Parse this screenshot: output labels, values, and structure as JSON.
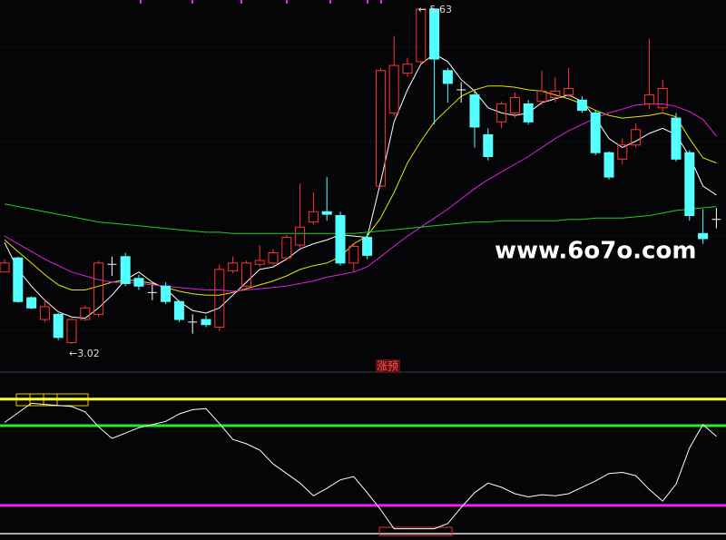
{
  "chart_data": [
    {
      "type": "candlestick",
      "up_color": "#ff3232",
      "down_color": "#54ffff",
      "flat_color": "#ffffff",
      "open": [
        3.58,
        3.69,
        3.38,
        3.21,
        3.25,
        3.03,
        3.21,
        3.25,
        3.64,
        3.7,
        3.53,
        3.42,
        3.47,
        3.35,
        3.19,
        3.21,
        3.15,
        3.59,
        3.47,
        3.64,
        3.65,
        3.69,
        3.79,
        3.97,
        4.05,
        4.02,
        3.65,
        3.85,
        4.25,
        4.82,
        5.13,
        5.22,
        5.63,
        5.15,
        5.0,
        4.96,
        4.65,
        4.75,
        4.82,
        4.89,
        4.91,
        4.94,
        4.96,
        4.92,
        4.82,
        4.51,
        4.46,
        4.57,
        4.89,
        4.86,
        4.78,
        4.51,
        3.88,
        3.99
      ],
      "high": [
        3.68,
        3.7,
        3.39,
        3.37,
        3.26,
        3.22,
        3.32,
        3.67,
        3.7,
        3.73,
        3.56,
        3.48,
        3.5,
        3.36,
        3.25,
        3.24,
        3.64,
        3.7,
        3.67,
        3.79,
        3.76,
        3.87,
        4.27,
        4.2,
        4.32,
        4.05,
        3.8,
        3.88,
        5.17,
        5.42,
        5.25,
        5.63,
        5.63,
        5.17,
        5.06,
        5.0,
        4.7,
        4.91,
        4.98,
        4.92,
        5.15,
        5.1,
        5.17,
        4.95,
        4.84,
        4.52,
        4.62,
        4.74,
        5.4,
        5.08,
        4.82,
        4.53,
        4.07,
        4.08
      ],
      "low": [
        3.58,
        3.34,
        3.29,
        3.19,
        3.05,
        3.02,
        3.2,
        3.23,
        3.55,
        3.47,
        3.44,
        3.36,
        3.33,
        3.19,
        3.1,
        3.15,
        3.12,
        3.57,
        3.46,
        3.62,
        3.63,
        3.67,
        3.77,
        3.95,
        3.98,
        3.63,
        3.58,
        3.68,
        4.24,
        4.8,
        5.1,
        5.2,
        4.73,
        4.9,
        4.9,
        4.55,
        4.45,
        4.7,
        4.78,
        4.73,
        4.88,
        4.9,
        4.94,
        4.82,
        4.49,
        4.3,
        4.42,
        4.55,
        4.85,
        4.83,
        4.44,
        3.98,
        3.8,
        3.92
      ],
      "close": [
        3.65,
        3.35,
        3.3,
        3.31,
        3.07,
        3.21,
        3.3,
        3.65,
        3.64,
        3.49,
        3.47,
        3.42,
        3.35,
        3.21,
        3.19,
        3.17,
        3.6,
        3.65,
        3.65,
        3.67,
        3.73,
        3.85,
        3.93,
        4.05,
        4.03,
        3.65,
        3.78,
        3.71,
        5.15,
        5.19,
        5.2,
        5.63,
        5.24,
        5.05,
        5.0,
        4.71,
        4.48,
        4.89,
        4.94,
        4.75,
        4.99,
        4.99,
        5.01,
        4.84,
        4.51,
        4.32,
        4.57,
        4.69,
        4.96,
        5.01,
        4.46,
        4.02,
        3.84,
        3.99
      ],
      "series": [
        {
          "color": "#ffffff",
          "values": [
            3.81,
            3.6,
            3.47,
            3.36,
            3.27,
            3.23,
            3.22,
            3.3,
            3.4,
            3.52,
            3.58,
            3.5,
            3.45,
            3.35,
            3.28,
            3.26,
            3.3,
            3.4,
            3.5,
            3.6,
            3.62,
            3.68,
            3.76,
            3.8,
            3.83,
            3.87,
            3.86,
            3.85,
            4.28,
            4.75,
            5.0,
            5.2,
            5.28,
            5.22,
            5.08,
            4.99,
            4.86,
            4.82,
            4.8,
            4.82,
            4.9,
            4.93,
            4.96,
            4.91,
            4.78,
            4.62,
            4.55,
            4.6,
            4.66,
            4.7,
            4.65,
            4.48,
            4.25,
            4.18
          ]
        },
        {
          "color": "#e6e600",
          "values": [
            3.83,
            3.74,
            3.65,
            3.56,
            3.48,
            3.44,
            3.44,
            3.47,
            3.5,
            3.52,
            3.51,
            3.49,
            3.46,
            3.43,
            3.41,
            3.4,
            3.4,
            3.42,
            3.45,
            3.48,
            3.51,
            3.55,
            3.6,
            3.63,
            3.65,
            3.7,
            3.8,
            3.86,
            4.0,
            4.2,
            4.43,
            4.6,
            4.75,
            4.85,
            4.95,
            5.0,
            5.03,
            5.03,
            5.02,
            5.0,
            4.99,
            4.96,
            4.93,
            4.89,
            4.84,
            4.8,
            4.78,
            4.79,
            4.8,
            4.82,
            4.79,
            4.62,
            4.47,
            4.43
          ]
        },
        {
          "color": "#e020e0",
          "values": [
            3.86,
            3.8,
            3.74,
            3.68,
            3.63,
            3.58,
            3.55,
            3.52,
            3.5,
            3.5,
            3.49,
            3.48,
            3.47,
            3.46,
            3.45,
            3.44,
            3.44,
            3.43,
            3.44,
            3.45,
            3.46,
            3.47,
            3.49,
            3.51,
            3.54,
            3.56,
            3.58,
            3.62,
            3.7,
            3.78,
            3.86,
            3.93,
            4.0,
            4.07,
            4.15,
            4.23,
            4.3,
            4.36,
            4.42,
            4.48,
            4.55,
            4.62,
            4.68,
            4.73,
            4.78,
            4.82,
            4.85,
            4.88,
            4.89,
            4.89,
            4.87,
            4.83,
            4.77,
            4.64
          ]
        },
        {
          "color": "#20d020",
          "values": [
            4.11,
            4.09,
            4.07,
            4.05,
            4.03,
            4.01,
            3.99,
            3.97,
            3.96,
            3.95,
            3.94,
            3.93,
            3.92,
            3.91,
            3.9,
            3.89,
            3.89,
            3.88,
            3.88,
            3.88,
            3.88,
            3.88,
            3.88,
            3.88,
            3.88,
            3.88,
            3.88,
            3.89,
            3.9,
            3.91,
            3.92,
            3.93,
            3.94,
            3.95,
            3.96,
            3.97,
            3.97,
            3.98,
            3.98,
            3.98,
            3.98,
            3.98,
            3.99,
            3.99,
            4.0,
            4.0,
            4.0,
            4.01,
            4.02,
            4.04,
            4.06,
            4.07,
            4.08,
            4.09
          ]
        }
      ],
      "high_label": "← 5.63",
      "low_label": "←3.02",
      "ylim": [
        2.8,
        5.7
      ],
      "watermark": "www.6o7o.com",
      "signal": "涨预"
    },
    {
      "type": "line",
      "ylim": [
        -30,
        110
      ],
      "levels": [
        {
          "value": 100,
          "color": "#ffff33"
        },
        {
          "value": 75,
          "color": "#22ee22"
        },
        {
          "value": 0,
          "color": "#ee22ee"
        }
      ],
      "series": [
        {
          "color": "#ffffff",
          "values": [
            78,
            87,
            96,
            95,
            94,
            93,
            88,
            74,
            63,
            68,
            73,
            76,
            79,
            86,
            90,
            91,
            77,
            62,
            58,
            52,
            39,
            30,
            21,
            9,
            16,
            24,
            27,
            12,
            -4,
            -22,
            -22,
            -22,
            -22,
            -17,
            -2,
            12,
            21,
            17,
            11,
            8,
            10,
            9,
            11,
            17,
            23,
            30,
            31,
            28,
            15,
            4,
            20,
            54,
            76,
            65
          ]
        }
      ]
    }
  ]
}
